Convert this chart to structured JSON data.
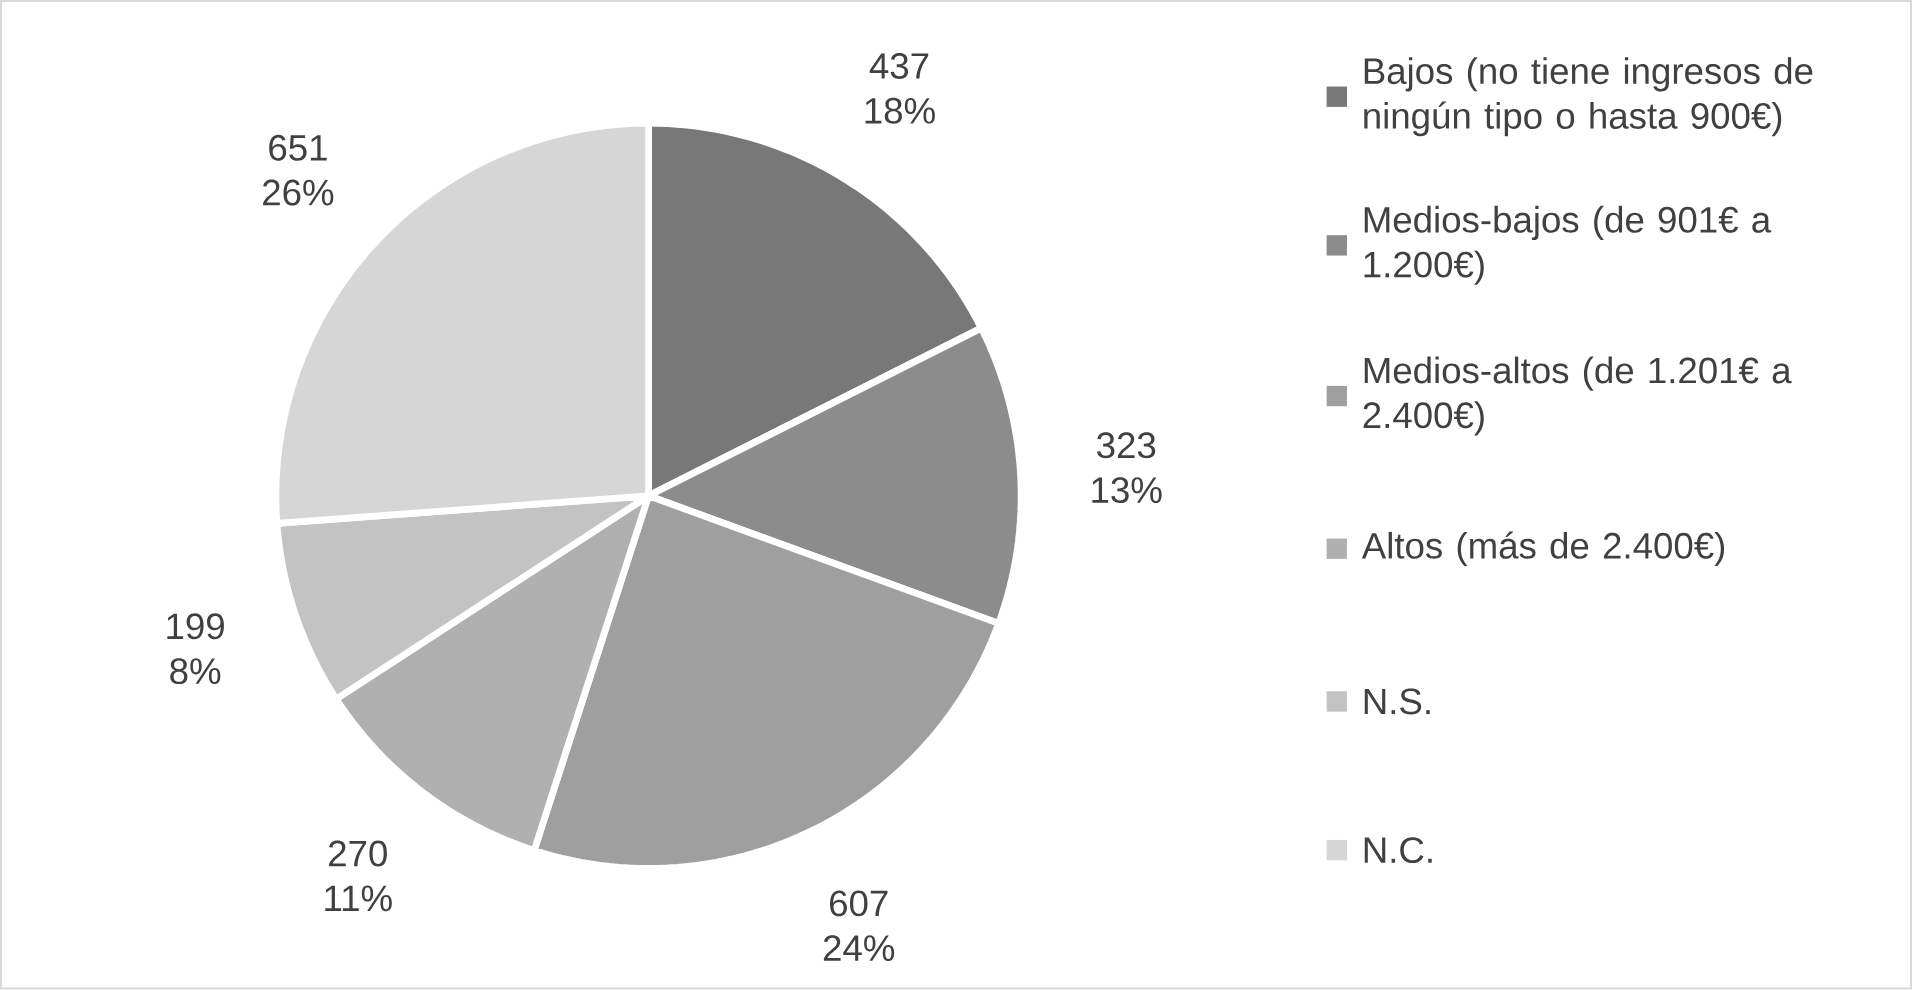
{
  "chart_data": {
    "type": "pie",
    "categories": [
      "Bajos (no tiene ingresos de ningún tipo o hasta 900€)",
      "Medios-bajos (de 901€ a 1.200€)",
      "Medios-altos (de 1.201€ a 2.400€)",
      "Altos (más de 2.400€)",
      "N.S.",
      "N.C."
    ],
    "values": [
      437,
      323,
      607,
      270,
      199,
      651
    ],
    "value_labels": [
      "437 18%",
      "323 13%",
      "607 24%",
      "270 11%",
      "199 8%",
      "651 26%"
    ],
    "colors": [
      "#787878",
      "#8c8c8c",
      "#9f9f9f",
      "#b0b0b0",
      "#c3c3c3",
      "#d6d6d6"
    ],
    "legend": "right"
  }
}
